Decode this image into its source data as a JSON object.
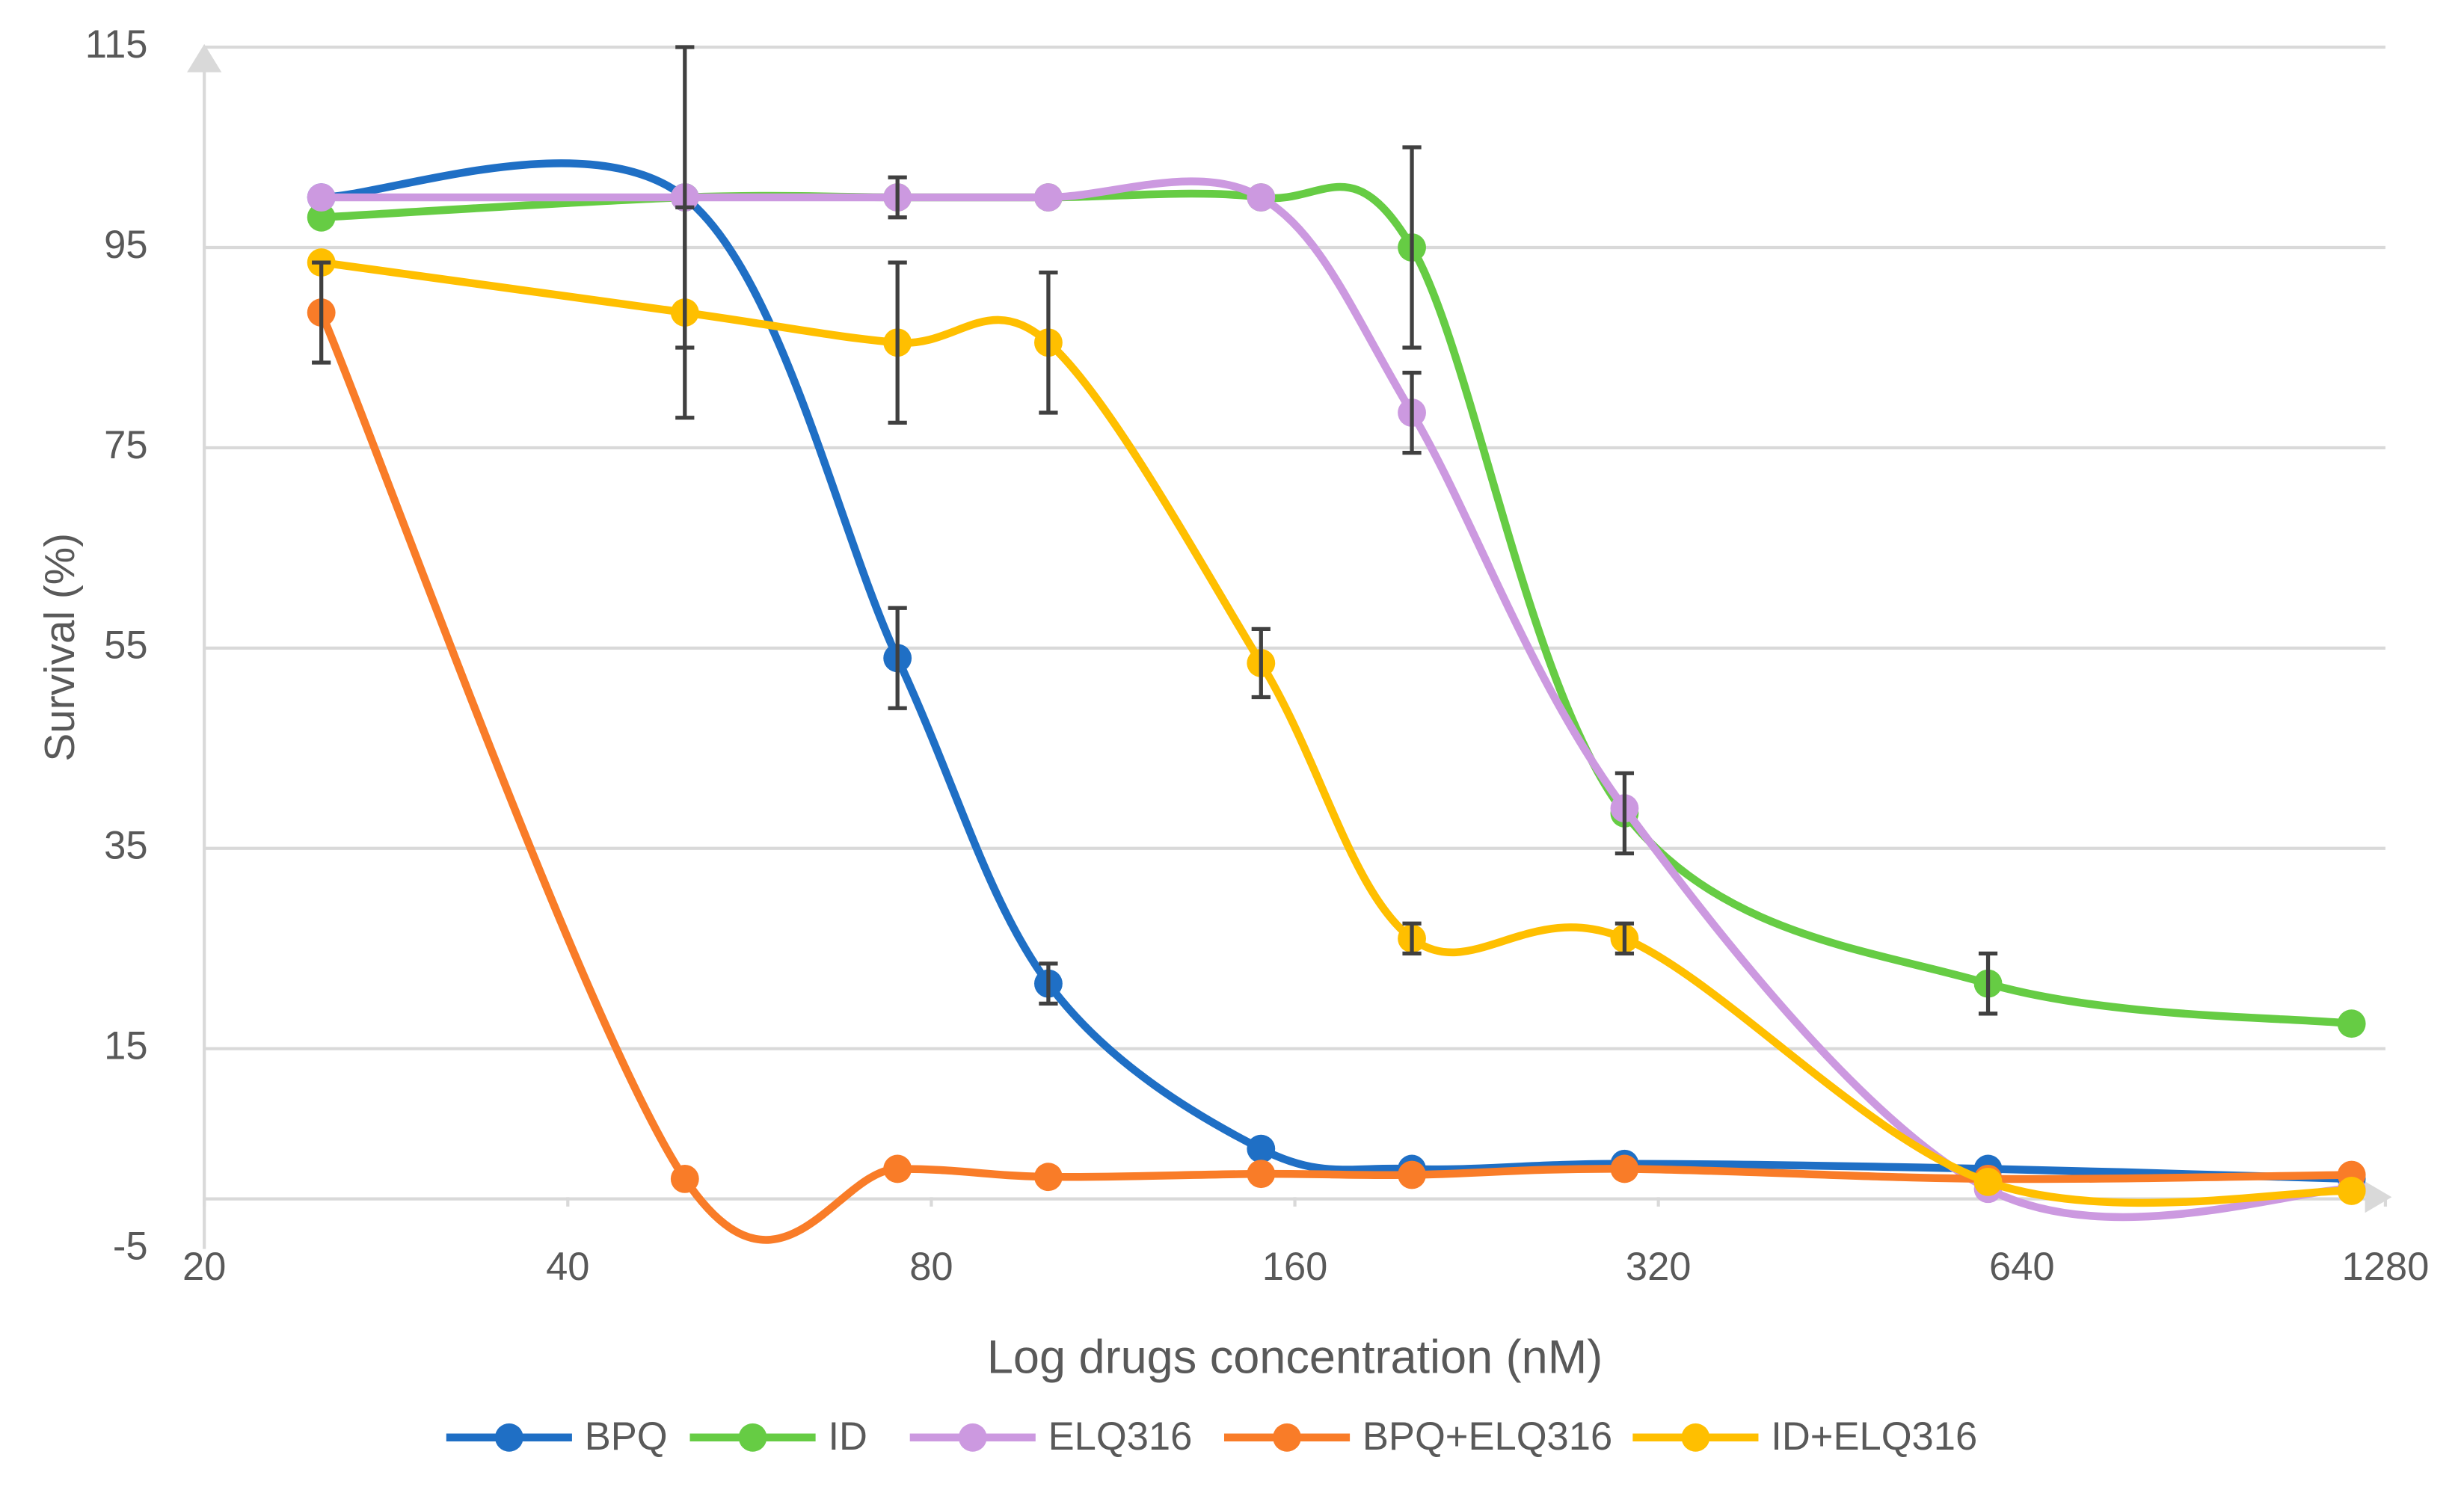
{
  "chart_data": {
    "type": "line",
    "x_label": "Log drugs concentration (nM)",
    "y_label": "Survival (%)",
    "x": [
      25,
      50,
      75,
      100,
      150,
      200,
      300,
      600,
      1200
    ],
    "log_x": true,
    "xlim": [
      20,
      1280
    ],
    "xticks": [
      20,
      40,
      80,
      160,
      320,
      640,
      1280
    ],
    "ylim": [
      -5,
      115
    ],
    "yticks": [
      -5,
      15,
      35,
      55,
      75,
      95,
      115
    ],
    "grid": true,
    "legend": "bottom",
    "smooth": true,
    "series": [
      {
        "name": "BPQ",
        "color": "#1f6fc5",
        "values": [
          100,
          100,
          54,
          21.5,
          5,
          3,
          3.5,
          3,
          2
        ],
        "errors": [
          null,
          15,
          5,
          2,
          null,
          null,
          null,
          null,
          null
        ]
      },
      {
        "name": "ID",
        "color": "#66cc44",
        "values": [
          98,
          100,
          100,
          100,
          100,
          95,
          38.5,
          21.5,
          17.5
        ],
        "errors": [
          null,
          null,
          null,
          null,
          null,
          10,
          4,
          3,
          null
        ]
      },
      {
        "name": "ELQ316",
        "color": "#cc99e0",
        "values": [
          100,
          100,
          100,
          100,
          100,
          78.5,
          39,
          1,
          1
        ],
        "errors": [
          null,
          null,
          2,
          null,
          null,
          4,
          null,
          null,
          null
        ]
      },
      {
        "name": "BPQ+ELQ316",
        "color": "#f97c28",
        "values": [
          88.5,
          2,
          3,
          2.2,
          2.5,
          2.4,
          3,
          2,
          2.4
        ],
        "errors": [
          5,
          null,
          null,
          null,
          null,
          null,
          null,
          null,
          null
        ]
      },
      {
        "name": "ID+ELQ316",
        "color": "#ffbf00",
        "values": [
          93.5,
          88.5,
          85.5,
          85.5,
          53.5,
          26,
          26,
          1.7,
          0.8
        ],
        "errors": [
          null,
          10.5,
          8,
          7,
          3.4,
          1.5,
          1.5,
          null,
          null
        ]
      }
    ]
  }
}
